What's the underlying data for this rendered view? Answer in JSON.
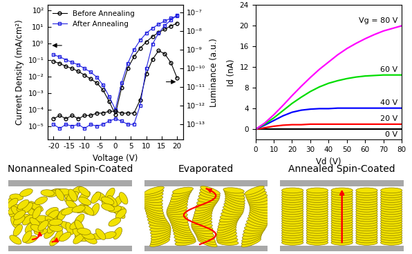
{
  "chart_data": [
    {
      "type": "line",
      "x": [
        -20,
        -18,
        -16,
        -14,
        -12,
        -10,
        -8,
        -6,
        -4,
        -2,
        0,
        2,
        4,
        6,
        8,
        10,
        12,
        14,
        16,
        18,
        20
      ],
      "xlim": [
        -22,
        22
      ],
      "xticks": [
        -20,
        -15,
        -10,
        -5,
        0,
        5,
        10,
        15,
        20
      ],
      "x_label": "Voltage (V)",
      "y_label": "Current Density (mA/cm²)",
      "y2_label": "Luminance (a.u.)",
      "log": "y",
      "ylim": [
        1.5e-06,
        200
      ],
      "yticks": [
        {
          "value": 100,
          "label": "10²"
        },
        {
          "value": 10,
          "label": "10¹"
        },
        {
          "value": 1,
          "label": "10⁰"
        },
        {
          "value": 0.1,
          "label": "10⁻¹"
        },
        {
          "value": 0.01,
          "label": "10⁻²"
        },
        {
          "value": 0.001,
          "label": "10⁻³"
        },
        {
          "value": 0.0001,
          "label": "10⁻⁴"
        },
        {
          "value": 1e-05,
          "label": "10⁻⁵"
        }
      ],
      "y2lim": [
        1.5e-14,
        2.5e-07
      ],
      "y2ticks": [
        {
          "value": 1e-07,
          "label": "10⁻⁷"
        },
        {
          "value": 1e-08,
          "label": "10⁻⁸"
        },
        {
          "value": 1e-09,
          "label": "10⁻⁹"
        },
        {
          "value": 1e-10,
          "label": "10⁻¹⁰"
        },
        {
          "value": 1e-11,
          "label": "10⁻¹¹"
        },
        {
          "value": 1e-12,
          "label": "10⁻¹²"
        },
        {
          "value": 1e-13,
          "label": "10⁻¹³"
        }
      ],
      "legend": "upper left",
      "series": [
        {
          "name": "Before Annealing",
          "color": "#000000",
          "marker": "circle",
          "line_style": "solid",
          "values": [
            0.08,
            0.06,
            0.04,
            0.03,
            0.02,
            0.012,
            0.007,
            0.004,
            0.0015,
            0.0003,
            5e-05,
            0.002,
            0.03,
            0.15,
            0.5,
            1.2,
            2.5,
            4.5,
            7,
            11,
            16
          ]
        },
        {
          "name": "After Annealing",
          "color": "#2020e0",
          "marker": "square",
          "line_style": "solid",
          "values": [
            0.2,
            0.15,
            0.1,
            0.07,
            0.05,
            0.03,
            0.018,
            0.009,
            0.003,
            0.0006,
            0.0001,
            0.004,
            0.06,
            0.4,
            1.5,
            4,
            8,
            14,
            22,
            32,
            45
          ]
        },
        {
          "axis": "y2",
          "color": "#000000",
          "marker": "circle",
          "line_style": "solid",
          "values": [
            2e-13,
            3e-13,
            2e-13,
            3e-13,
            2e-13,
            3e-13,
            3e-13,
            4e-13,
            4e-13,
            5e-13,
            5e-13,
            4e-13,
            4e-13,
            4e-13,
            2e-12,
            5e-11,
            3e-10,
            9e-10,
            6e-10,
            2e-10,
            3e-11
          ]
        },
        {
          "axis": "y2",
          "color": "#2020e0",
          "marker": "square",
          "line_style": "solid",
          "values": [
            1e-13,
            6e-14,
            1e-13,
            8e-14,
            1e-13,
            6e-14,
            1e-13,
            8e-14,
            1e-13,
            1.5e-13,
            2e-13,
            1.5e-13,
            1e-13,
            1e-13,
            1e-12,
            1e-10,
            2e-09,
            8e-09,
            2e-08,
            4e-08,
            7e-08
          ]
        }
      ]
    },
    {
      "type": "line",
      "x": [
        0,
        5,
        10,
        15,
        20,
        25,
        30,
        35,
        40,
        45,
        50,
        55,
        60,
        65,
        70,
        75,
        80
      ],
      "xlim": [
        0,
        80
      ],
      "xticks": [
        0,
        10,
        20,
        30,
        40,
        50,
        60,
        70,
        80
      ],
      "ylim": [
        -2,
        24
      ],
      "yticks": [
        0,
        4,
        8,
        12,
        16,
        20,
        24
      ],
      "x_label": "Vd (V)",
      "y_label": "Id (nA)",
      "series": [
        {
          "name": "0 V",
          "color": "#000000",
          "values": [
            0,
            0,
            0,
            0,
            0,
            0,
            0,
            0,
            0,
            0,
            0,
            0,
            0,
            0,
            0,
            0,
            0
          ]
        },
        {
          "name": "20 V",
          "color": "#ff0000",
          "values": [
            0,
            0.3,
            0.6,
            0.8,
            0.9,
            0.9,
            1,
            1,
            1,
            1,
            1,
            1,
            1,
            1,
            1,
            1,
            1
          ]
        },
        {
          "name": "40 V",
          "color": "#0000ff",
          "values": [
            0,
            0.8,
            1.7,
            2.6,
            3.3,
            3.7,
            3.9,
            4,
            4,
            4.1,
            4.1,
            4.1,
            4.1,
            4.1,
            4.1,
            4.1,
            4.1
          ]
        },
        {
          "name": "60 V",
          "color": "#00dd00",
          "values": [
            0,
            1,
            2.2,
            3.6,
            5,
            6.2,
            7.3,
            8.2,
            8.9,
            9.4,
            9.8,
            10.1,
            10.3,
            10.4,
            10.5,
            10.5,
            10.5
          ]
        },
        {
          "name": "Vg = 80 V",
          "color": "#ff00ff",
          "values": [
            0,
            1.2,
            2.8,
            4.6,
            6.5,
            8.3,
            10,
            11.6,
            13,
            14.4,
            15.6,
            16.6,
            17.5,
            18.3,
            19,
            19.5,
            20
          ]
        }
      ]
    }
  ],
  "diagram": {
    "panels": [
      {
        "title": "Nonannealed Spin-Coated"
      },
      {
        "title": "Evaporated"
      },
      {
        "title": "Annealed Spin-Coated"
      }
    ]
  }
}
